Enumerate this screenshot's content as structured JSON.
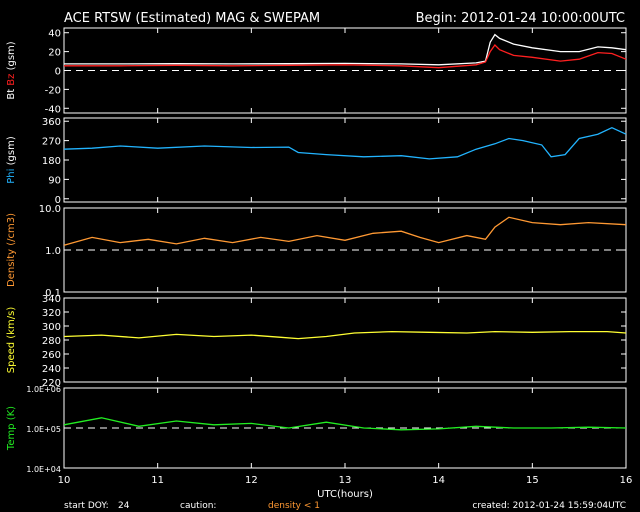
{
  "header": {
    "title": "ACE RTSW (Estimated) MAG & SWEPAM",
    "begin": "Begin: 2012-01-24 10:00:00UTC"
  },
  "footer": {
    "start_doy_label": "start DOY:",
    "start_doy": "24",
    "caution_label": "caution:",
    "caution_text": "density < 1",
    "created": "created: 2012-01-24 15:59:04UTC"
  },
  "colors": {
    "bt": "#ffffff",
    "bz": "#ff2020",
    "phi": "#22b4ff",
    "density": "#ff9933",
    "speed": "#ffff33",
    "temp": "#22ee22",
    "caution": "#ff9933"
  },
  "chart_data": [
    {
      "type": "line",
      "ylabel_parts": [
        "Bt",
        "Bz",
        "(gsm)"
      ],
      "ylim": [
        -45,
        45
      ],
      "yticks": [
        40,
        20,
        0,
        -20,
        -40
      ],
      "ytick_labels": [
        "40",
        "20",
        "0",
        "-20",
        "-40"
      ],
      "ref_y": 0,
      "series": [
        {
          "key": "bt",
          "points": [
            [
              10.0,
              7
            ],
            [
              10.6,
              7
            ],
            [
              11.2,
              7.2
            ],
            [
              11.8,
              7
            ],
            [
              12.4,
              7.2
            ],
            [
              13.0,
              7.5
            ],
            [
              13.6,
              7
            ],
            [
              14.0,
              6
            ],
            [
              14.4,
              8
            ],
            [
              14.5,
              10
            ],
            [
              14.55,
              30
            ],
            [
              14.6,
              38
            ],
            [
              14.65,
              34
            ],
            [
              14.8,
              28
            ],
            [
              15.0,
              24
            ],
            [
              15.3,
              20
            ],
            [
              15.5,
              20
            ],
            [
              15.7,
              25
            ],
            [
              15.85,
              24
            ],
            [
              16.0,
              22
            ]
          ]
        },
        {
          "key": "bz",
          "points": [
            [
              10.0,
              5
            ],
            [
              10.6,
              5
            ],
            [
              11.2,
              5.5
            ],
            [
              11.8,
              5
            ],
            [
              12.4,
              5.5
            ],
            [
              13.0,
              6
            ],
            [
              13.6,
              5
            ],
            [
              14.0,
              3
            ],
            [
              14.4,
              6
            ],
            [
              14.5,
              9
            ],
            [
              14.55,
              20
            ],
            [
              14.6,
              27
            ],
            [
              14.65,
              22
            ],
            [
              14.8,
              16
            ],
            [
              15.0,
              14
            ],
            [
              15.3,
              10
            ],
            [
              15.5,
              12
            ],
            [
              15.7,
              19
            ],
            [
              15.85,
              18
            ],
            [
              16.0,
              12
            ]
          ]
        }
      ]
    },
    {
      "type": "line",
      "ylabel_parts": [
        "Phi",
        "(gsm)"
      ],
      "ylim": [
        -15,
        375
      ],
      "yticks": [
        360,
        270,
        180,
        90,
        0
      ],
      "ytick_labels": [
        "360",
        "270",
        "180",
        "90",
        "0"
      ],
      "series": [
        {
          "key": "phi",
          "points": [
            [
              10.0,
              230
            ],
            [
              10.3,
              235
            ],
            [
              10.6,
              245
            ],
            [
              11.0,
              235
            ],
            [
              11.5,
              245
            ],
            [
              12.0,
              238
            ],
            [
              12.4,
              240
            ],
            [
              12.5,
              215
            ],
            [
              12.8,
              205
            ],
            [
              13.2,
              195
            ],
            [
              13.6,
              200
            ],
            [
              13.9,
              185
            ],
            [
              14.2,
              195
            ],
            [
              14.4,
              230
            ],
            [
              14.6,
              255
            ],
            [
              14.75,
              280
            ],
            [
              14.9,
              270
            ],
            [
              15.1,
              250
            ],
            [
              15.2,
              195
            ],
            [
              15.35,
              205
            ],
            [
              15.5,
              280
            ],
            [
              15.7,
              300
            ],
            [
              15.85,
              330
            ],
            [
              16.0,
              300
            ]
          ]
        }
      ]
    },
    {
      "type": "line",
      "log": true,
      "ylabel_parts": [
        "Density",
        "(/cm3)"
      ],
      "ylim": [
        0.1,
        10
      ],
      "yticks": [
        10,
        1,
        0.1
      ],
      "ytick_labels": [
        "10.0",
        "1.0",
        "0.1"
      ],
      "ref_y": 1,
      "series": [
        {
          "key": "density",
          "points": [
            [
              10.0,
              1.3
            ],
            [
              10.3,
              2.0
            ],
            [
              10.6,
              1.5
            ],
            [
              10.9,
              1.8
            ],
            [
              11.2,
              1.4
            ],
            [
              11.5,
              1.9
            ],
            [
              11.8,
              1.5
            ],
            [
              12.1,
              2.0
            ],
            [
              12.4,
              1.6
            ],
            [
              12.7,
              2.2
            ],
            [
              13.0,
              1.7
            ],
            [
              13.3,
              2.5
            ],
            [
              13.6,
              2.8
            ],
            [
              13.8,
              2.0
            ],
            [
              14.0,
              1.5
            ],
            [
              14.3,
              2.2
            ],
            [
              14.5,
              1.8
            ],
            [
              14.6,
              3.5
            ],
            [
              14.75,
              6.0
            ],
            [
              15.0,
              4.5
            ],
            [
              15.3,
              4.0
            ],
            [
              15.6,
              4.5
            ],
            [
              16.0,
              4.0
            ]
          ]
        }
      ]
    },
    {
      "type": "line",
      "ylabel_parts": [
        "Speed",
        "(km/s)"
      ],
      "ylim": [
        220,
        340
      ],
      "yticks": [
        340,
        320,
        300,
        280,
        260,
        240,
        220
      ],
      "ytick_labels": [
        "340",
        "320",
        "300",
        "280",
        "260",
        "240",
        "220"
      ],
      "series": [
        {
          "key": "speed",
          "points": [
            [
              10.0,
              285
            ],
            [
              10.4,
              287
            ],
            [
              10.8,
              283
            ],
            [
              11.2,
              288
            ],
            [
              11.6,
              285
            ],
            [
              12.0,
              287
            ],
            [
              12.3,
              284
            ],
            [
              12.5,
              282
            ],
            [
              12.8,
              285
            ],
            [
              13.1,
              290
            ],
            [
              13.5,
              292
            ],
            [
              13.9,
              291
            ],
            [
              14.3,
              290
            ],
            [
              14.6,
              292
            ],
            [
              15.0,
              291
            ],
            [
              15.4,
              292
            ],
            [
              15.8,
              292
            ],
            [
              16.0,
              290
            ]
          ]
        }
      ]
    },
    {
      "type": "line",
      "log": true,
      "ylabel_parts": [
        "Temp",
        "(K)"
      ],
      "ylim": [
        10000,
        1000000
      ],
      "yticks": [
        1000000,
        100000,
        10000
      ],
      "ytick_labels": [
        "1.0E+06",
        "1.0E+05",
        "1.0E+04"
      ],
      "ref_y": 100000,
      "series": [
        {
          "key": "temp",
          "points": [
            [
              10.0,
              120000
            ],
            [
              10.4,
              180000
            ],
            [
              10.8,
              110000
            ],
            [
              11.2,
              150000
            ],
            [
              11.6,
              120000
            ],
            [
              12.0,
              130000
            ],
            [
              12.4,
              100000
            ],
            [
              12.8,
              140000
            ],
            [
              13.2,
              100000
            ],
            [
              13.6,
              90000
            ],
            [
              14.0,
              95000
            ],
            [
              14.4,
              110000
            ],
            [
              14.8,
              100000
            ],
            [
              15.2,
              100000
            ],
            [
              15.6,
              105000
            ],
            [
              16.0,
              100000
            ]
          ]
        }
      ]
    }
  ],
  "xaxis": {
    "xlim": [
      10,
      16
    ],
    "ticks": [
      10,
      11,
      12,
      13,
      14,
      15,
      16
    ],
    "tick_labels": [
      "10",
      "11",
      "12",
      "13",
      "14",
      "15",
      "16"
    ],
    "label": "UTC(hours)"
  }
}
